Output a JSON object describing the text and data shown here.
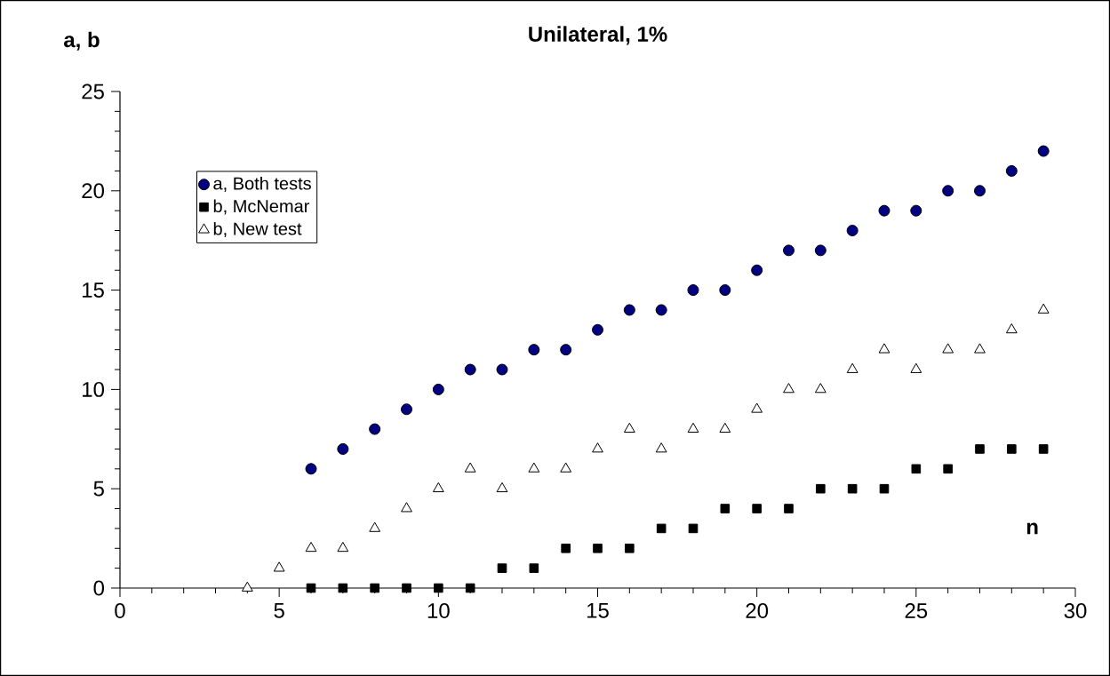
{
  "chart_data": {
    "type": "scatter",
    "title": "Unilateral, 1%",
    "xlabel": "n",
    "ylabel": "a, b",
    "xlim": [
      0,
      30
    ],
    "xticks": [
      0,
      5,
      10,
      15,
      20,
      25,
      30
    ],
    "ylim": [
      0,
      25
    ],
    "yticks": [
      0,
      5,
      10,
      15,
      20,
      25
    ],
    "grid": false,
    "legend": "top left",
    "series": [
      {
        "name": "a, Both tests",
        "color": "#000080",
        "marker": "circle",
        "x": [
          6,
          7,
          8,
          9,
          10,
          11,
          12,
          13,
          14,
          15,
          16,
          17,
          18,
          19,
          20,
          21,
          22,
          23,
          24,
          25,
          26,
          27,
          28,
          29
        ],
        "values": [
          6,
          7,
          8,
          9,
          10,
          11,
          11,
          12,
          12,
          13,
          14,
          14,
          15,
          15,
          16,
          17,
          17,
          18,
          19,
          19,
          20,
          20,
          21,
          22
        ]
      },
      {
        "name": "b, McNemar",
        "color": "#000000",
        "marker": "square",
        "x": [
          6,
          7,
          8,
          9,
          10,
          11,
          12,
          13,
          14,
          15,
          16,
          17,
          18,
          19,
          20,
          21,
          22,
          23,
          24,
          25,
          26,
          27,
          28,
          29
        ],
        "values": [
          0,
          0,
          0,
          0,
          0,
          0,
          1,
          1,
          2,
          2,
          2,
          3,
          3,
          4,
          4,
          4,
          5,
          5,
          5,
          6,
          6,
          7,
          7,
          7
        ]
      },
      {
        "name": "b, New test",
        "color": "#ffffff",
        "marker": "triangle",
        "x": [
          4,
          5,
          6,
          7,
          8,
          9,
          10,
          11,
          12,
          13,
          14,
          15,
          16,
          17,
          18,
          19,
          20,
          21,
          22,
          23,
          24,
          25,
          26,
          27,
          28,
          29
        ],
        "values": [
          0,
          1,
          2,
          2,
          3,
          4,
          5,
          6,
          5,
          6,
          6,
          7,
          8,
          7,
          8,
          8,
          9,
          10,
          10,
          11,
          12,
          11,
          12,
          12,
          13,
          14
        ]
      }
    ]
  }
}
